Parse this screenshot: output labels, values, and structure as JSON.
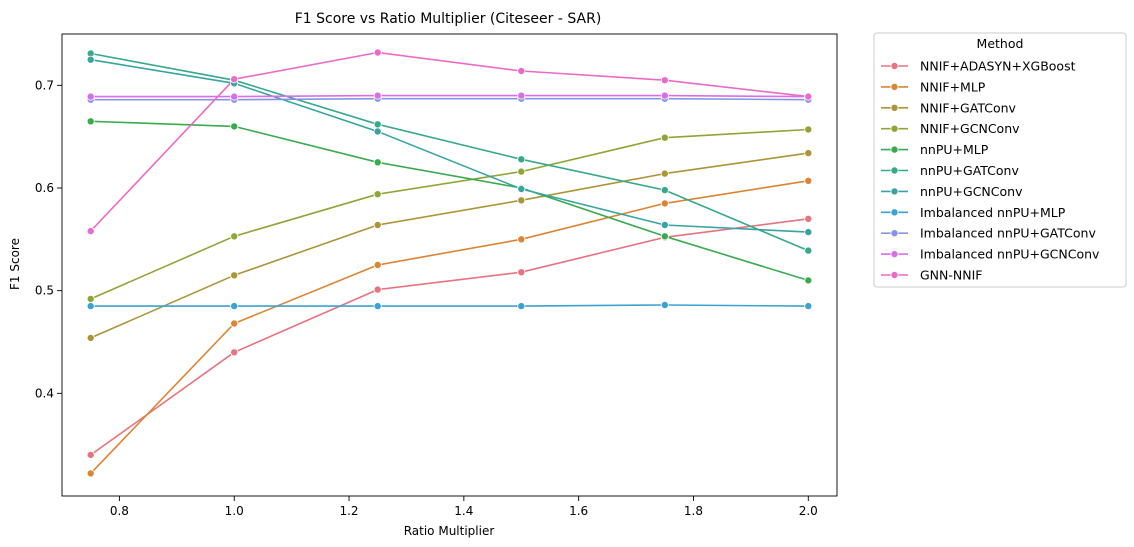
{
  "chart_data": {
    "type": "line",
    "title": "F1 Score vs Ratio Multiplier (Citeseer - SAR)",
    "xlabel": "Ratio Multiplier",
    "ylabel": "F1 Score",
    "xlim": [
      0.7,
      2.05
    ],
    "ylim": [
      0.3,
      0.75
    ],
    "xticks": [
      0.8,
      1.0,
      1.2,
      1.4,
      1.6,
      1.8,
      2.0
    ],
    "xtick_labels": [
      "0.8",
      "1.0",
      "1.2",
      "1.4",
      "1.6",
      "1.8",
      "2.0"
    ],
    "yticks": [
      0.4,
      0.5,
      0.6,
      0.7
    ],
    "ytick_labels": [
      "0.4",
      "0.5",
      "0.6",
      "0.7"
    ],
    "grid": false,
    "legend_title": "Method",
    "legend_position": "outside-right",
    "x": [
      0.75,
      1.0,
      1.25,
      1.5,
      1.75,
      2.0
    ],
    "series": [
      {
        "name": "NNIF+ADASYN+XGBoost",
        "color": "#e8727f",
        "values": [
          0.34,
          0.44,
          0.501,
          0.518,
          0.552,
          0.57
        ]
      },
      {
        "name": "NNIF+MLP",
        "color": "#db8432",
        "values": [
          0.322,
          0.468,
          0.525,
          0.55,
          0.585,
          0.607
        ]
      },
      {
        "name": "NNIF+GATConv",
        "color": "#ad9434",
        "values": [
          0.454,
          0.515,
          0.564,
          0.588,
          0.614,
          0.634
        ]
      },
      {
        "name": "NNIF+GCNConv",
        "color": "#8fa535",
        "values": [
          0.492,
          0.553,
          0.594,
          0.616,
          0.649,
          0.657
        ]
      },
      {
        "name": "nnPU+MLP",
        "color": "#38ab4f",
        "values": [
          0.665,
          0.66,
          0.625,
          0.6,
          0.553,
          0.51
        ]
      },
      {
        "name": "nnPU+GATConv",
        "color": "#36a88c",
        "values": [
          0.731,
          0.705,
          0.662,
          0.628,
          0.598,
          0.539
        ]
      },
      {
        "name": "nnPU+GCNConv",
        "color": "#37a3a3",
        "values": [
          0.725,
          0.702,
          0.655,
          0.599,
          0.564,
          0.557
        ]
      },
      {
        "name": "Imbalanced nnPU+MLP",
        "color": "#3aa2d1",
        "values": [
          0.485,
          0.485,
          0.485,
          0.485,
          0.486,
          0.485
        ]
      },
      {
        "name": "Imbalanced nnPU+GATConv",
        "color": "#8793e8",
        "values": [
          0.686,
          0.686,
          0.687,
          0.687,
          0.687,
          0.686
        ]
      },
      {
        "name": "Imbalanced nnPU+GCNConv",
        "color": "#d96ee8",
        "values": [
          0.689,
          0.689,
          0.69,
          0.69,
          0.69,
          0.689
        ]
      },
      {
        "name": "GNN-NNIF",
        "color": "#ec6ac7",
        "values": [
          0.558,
          0.706,
          0.732,
          0.714,
          0.705,
          0.689
        ]
      }
    ]
  }
}
